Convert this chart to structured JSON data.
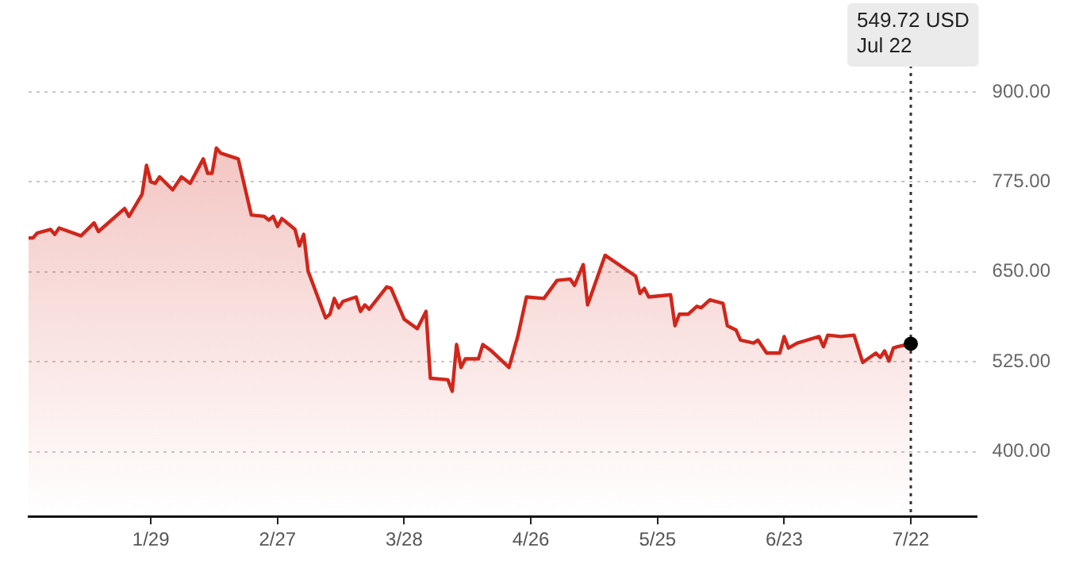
{
  "chart_data": {
    "type": "area",
    "x": [
      "--01-01",
      "--01-02",
      "--01-03",
      "--01-06",
      "--01-07",
      "--01-08",
      "--01-13",
      "--01-16",
      "--01-17",
      "--01-23",
      "--01-24",
      "--01-27",
      "--01-28",
      "--01-29",
      "--01-30",
      "--01-31",
      "--02-03",
      "--02-05",
      "--02-07",
      "--02-10",
      "--02-11",
      "--02-12",
      "--02-13",
      "--02-14",
      "--02-18",
      "--02-21",
      "--02-24",
      "--02-25",
      "--02-26",
      "--02-27",
      "--02-28",
      "--03-03",
      "--03-04",
      "--03-05",
      "--03-06",
      "--03-10",
      "--03-11",
      "--03-12",
      "--03-13",
      "--03-14",
      "--03-17",
      "--03-18",
      "--03-19",
      "--03-20",
      "--03-24",
      "--03-25",
      "--03-28",
      "--03-31",
      "--04-02",
      "--04-03",
      "--04-07",
      "--04-08",
      "--04-09",
      "--04-10",
      "--04-11",
      "--04-14",
      "--04-15",
      "--04-17",
      "--04-21",
      "--04-23",
      "--04-25",
      "--04-29",
      "--05-02",
      "--05-05",
      "--05-06",
      "--05-08",
      "--05-09",
      "--05-13",
      "--05-14",
      "--05-20",
      "--05-21",
      "--05-22",
      "--05-23",
      "--05-28",
      "--05-29",
      "--05-30",
      "--06-01",
      "--06-03",
      "--06-04",
      "--06-06",
      "--06-09",
      "--06-10",
      "--06-12",
      "--06-13",
      "--06-16",
      "--06-17",
      "--06-19",
      "--06-22",
      "--06-23",
      "--06-24",
      "--06-26",
      "--07-01",
      "--07-02",
      "--07-03",
      "--07-06",
      "--07-09",
      "--07-11",
      "--07-14",
      "--07-15",
      "--07-16",
      "--07-17",
      "--07-18",
      "--07-19",
      "--07-22"
    ],
    "series": [
      {
        "color": "#d0261b",
        "values": [
          697,
          697,
          704,
          709,
          702,
          711,
          700,
          718,
          706,
          738,
          727,
          758,
          798,
          775,
          773,
          782,
          764,
          782,
          773,
          807,
          787,
          787,
          822,
          815,
          807,
          729,
          727,
          722,
          727,
          713,
          724,
          709,
          686,
          702,
          651,
          586,
          591,
          613,
          600,
          609,
          615,
          595,
          604,
          598,
          629,
          627,
          584,
          571,
          595,
          502,
          500,
          484,
          549,
          517,
          529,
          529,
          549,
          540,
          517,
          560,
          615,
          613,
          638,
          640,
          631,
          660,
          604,
          673,
          669,
          644,
          620,
          627,
          615,
          618,
          575,
          591,
          591,
          602,
          600,
          611,
          606,
          575,
          569,
          555,
          551,
          555,
          537,
          537,
          560,
          544,
          551,
          560,
          546,
          562,
          560,
          562,
          524,
          537,
          531,
          540,
          526,
          544,
          546,
          550
        ]
      }
    ],
    "xlim": [
      "--01-01",
      "--08-06"
    ],
    "xticks": [
      {
        "value": "--01-29",
        "label": "1/29"
      },
      {
        "value": "--02-27",
        "label": "2/27"
      },
      {
        "value": "--03-28",
        "label": "3/28"
      },
      {
        "value": "--04-26",
        "label": "4/26"
      },
      {
        "value": "--05-25",
        "label": "5/25"
      },
      {
        "value": "--06-23",
        "label": "6/23"
      },
      {
        "value": "--07-22",
        "label": "7/22"
      }
    ],
    "ylim": [
      310,
      900
    ],
    "yticks": [
      {
        "value": 400,
        "label": "400.00"
      },
      {
        "value": 525,
        "label": "525.00"
      },
      {
        "value": 650,
        "label": "650.00"
      },
      {
        "value": 775,
        "label": "775.00"
      },
      {
        "value": 900,
        "label": "900.00"
      }
    ],
    "grid": "y",
    "legend": false,
    "ref_lines": [
      {
        "axis": "x",
        "value": "--07-22",
        "color": "#333333",
        "line_style": "dotted"
      }
    ],
    "annotations": [
      "549.72 USD\nJul 22"
    ]
  }
}
